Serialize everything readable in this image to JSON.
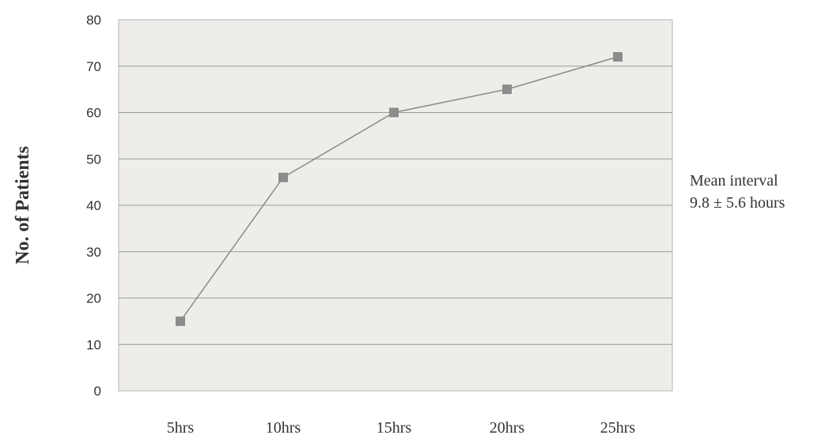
{
  "chart_data": {
    "type": "line",
    "categories": [
      "5hrs",
      "10hrs",
      "15hrs",
      "20hrs",
      "25hrs"
    ],
    "series": [
      {
        "values": [
          15,
          46,
          60,
          65,
          72
        ]
      }
    ],
    "ylabel": "No. of Patients",
    "xlabel": "",
    "ylim": [
      0,
      80
    ],
    "yticks": [
      0,
      10,
      20,
      30,
      40,
      50,
      60,
      70,
      80
    ],
    "grid": true,
    "annotation": [
      "Mean interval",
      "9.8 ± 5.6 hours"
    ],
    "colors": {
      "plot_background": "#efede9",
      "grid": "#9a9a9a",
      "line": "#8a8a8a",
      "marker": "#8c8c8c"
    }
  }
}
